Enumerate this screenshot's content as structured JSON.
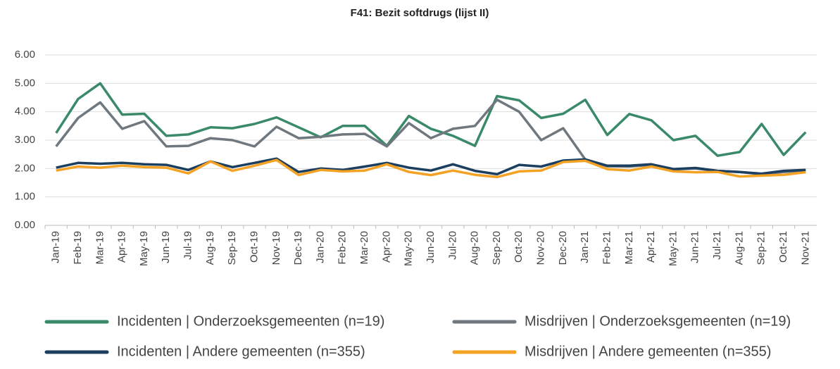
{
  "chart_data": {
    "type": "line",
    "title": "F41: Bezit softdrugs (lijst II)",
    "categories": [
      "Jan-19",
      "Feb-19",
      "Mar-19",
      "Apr-19",
      "May-19",
      "Jun-19",
      "Jul-19",
      "Aug-19",
      "Sep-19",
      "Oct-19",
      "Nov-19",
      "Dec-19",
      "Jan-20",
      "Feb-20",
      "Mar-20",
      "Apr-20",
      "May-20",
      "Jun-20",
      "Jul-20",
      "Aug-20",
      "Sep-20",
      "Oct-20",
      "Nov-20",
      "Dec-20",
      "Jan-21",
      "Feb-21",
      "Mar-21",
      "Apr-21",
      "May-21",
      "Jun-21",
      "Jul-21",
      "Aug-21",
      "Sep-21",
      "Oct-21",
      "Nov-21"
    ],
    "series": [
      {
        "name": "Incidenten | Onderzoeksgemeenten (n=19)",
        "color": "#3a8a6a",
        "values": [
          3.25,
          4.45,
          5.0,
          3.9,
          3.93,
          3.15,
          3.2,
          3.45,
          3.42,
          3.57,
          3.8,
          3.45,
          3.1,
          3.5,
          3.5,
          2.8,
          3.85,
          3.4,
          3.15,
          2.8,
          4.55,
          4.4,
          3.78,
          3.93,
          4.42,
          3.18,
          3.92,
          3.7,
          3.0,
          3.15,
          2.45,
          2.58,
          3.57,
          2.48,
          3.28
        ]
      },
      {
        "name": "Misdrijven | Onderzoeksgemeenten (n=19)",
        "color": "#6f777f",
        "values": [
          2.78,
          3.78,
          4.33,
          3.4,
          3.67,
          2.78,
          2.8,
          3.07,
          3.0,
          2.78,
          3.47,
          3.07,
          3.12,
          3.2,
          3.22,
          2.78,
          3.6,
          3.07,
          3.4,
          3.5,
          4.42,
          4.0,
          3.0,
          3.42,
          2.32,
          2.08,
          2.07,
          2.13,
          1.97,
          2.0,
          1.92,
          1.88,
          1.8,
          1.88,
          1.93
        ]
      },
      {
        "name": "Incidenten | Andere gemeenten (n=355)",
        "color": "#1c3f5f",
        "values": [
          2.03,
          2.2,
          2.17,
          2.2,
          2.15,
          2.13,
          1.95,
          2.25,
          2.05,
          2.2,
          2.35,
          1.88,
          2.0,
          1.95,
          2.07,
          2.2,
          2.03,
          1.93,
          2.15,
          1.92,
          1.8,
          2.13,
          2.07,
          2.28,
          2.32,
          2.1,
          2.1,
          2.15,
          1.98,
          2.02,
          1.92,
          1.88,
          1.82,
          1.92,
          1.95
        ]
      },
      {
        "name": "Misdrijven | Andere gemeenten (n=355)",
        "color": "#f4a223",
        "values": [
          1.93,
          2.07,
          2.03,
          2.1,
          2.05,
          2.03,
          1.83,
          2.25,
          1.92,
          2.1,
          2.3,
          1.77,
          1.95,
          1.9,
          1.93,
          2.15,
          1.88,
          1.77,
          1.93,
          1.78,
          1.7,
          1.9,
          1.93,
          2.23,
          2.27,
          1.98,
          1.93,
          2.07,
          1.9,
          1.87,
          1.88,
          1.72,
          1.75,
          1.78,
          1.87
        ]
      }
    ],
    "ylim": [
      0,
      6
    ],
    "yticks": [
      {
        "value": 0,
        "label": "0.00"
      },
      {
        "value": 1,
        "label": "1.00"
      },
      {
        "value": 2,
        "label": "2.00"
      },
      {
        "value": 3,
        "label": "3.00"
      },
      {
        "value": 4,
        "label": "4.00"
      },
      {
        "value": 5,
        "label": "5.00"
      },
      {
        "value": 6,
        "label": "6.00"
      }
    ],
    "grid": true
  }
}
